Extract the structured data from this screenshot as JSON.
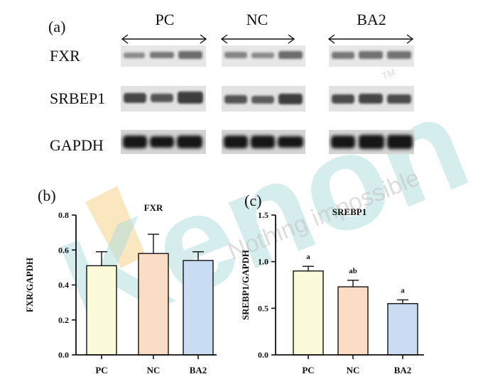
{
  "panel_a": {
    "label": "(a)",
    "groups": [
      "PC",
      "NC",
      "BA2"
    ],
    "rows": [
      "FXR",
      "SRBEP1",
      "GAPDH"
    ]
  },
  "watermark": {
    "brand": "Kenon",
    "tagline": "Nothing impossible",
    "mark": "TM",
    "colors": {
      "brand": "#9fd6d6",
      "accent": "#f6c86e"
    }
  },
  "chart_data": [
    {
      "panel": "(b)",
      "type": "bar",
      "title": "FXR",
      "xlabel": "",
      "ylabel": "FXR/GAPDH",
      "categories": [
        "PC",
        "NC",
        "BA2"
      ],
      "values": [
        0.51,
        0.58,
        0.54
      ],
      "errors": [
        0.08,
        0.11,
        0.05
      ],
      "letters": [
        "",
        "",
        ""
      ],
      "ylim": [
        0.0,
        0.8
      ],
      "yticks": [
        0.0,
        0.2,
        0.4,
        0.6,
        0.8
      ],
      "ytick_labels": [
        "0.0",
        "0.2",
        "0.4",
        "0.6",
        "0.8"
      ],
      "bar_colors": [
        "#fcfbd9",
        "#fbdcc5",
        "#c9dcf2"
      ],
      "grid": false,
      "legend": "none"
    },
    {
      "panel": "(c)",
      "type": "bar",
      "title": "SREBP1",
      "xlabel": "",
      "ylabel": "SREBP1/GAPDH",
      "categories": [
        "PC",
        "NC",
        "BA2"
      ],
      "values": [
        0.9,
        0.73,
        0.55
      ],
      "errors": [
        0.05,
        0.07,
        0.04
      ],
      "letters": [
        "a",
        "ab",
        "a"
      ],
      "ylim": [
        0.0,
        1.5
      ],
      "yticks": [
        0.0,
        0.5,
        1.0,
        1.5
      ],
      "ytick_labels": [
        "0.0",
        "0.5",
        "1.0",
        "1.5"
      ],
      "bar_colors": [
        "#fcfbd9",
        "#fbdcc5",
        "#c9dcf2"
      ],
      "grid": false,
      "legend": "none"
    }
  ]
}
